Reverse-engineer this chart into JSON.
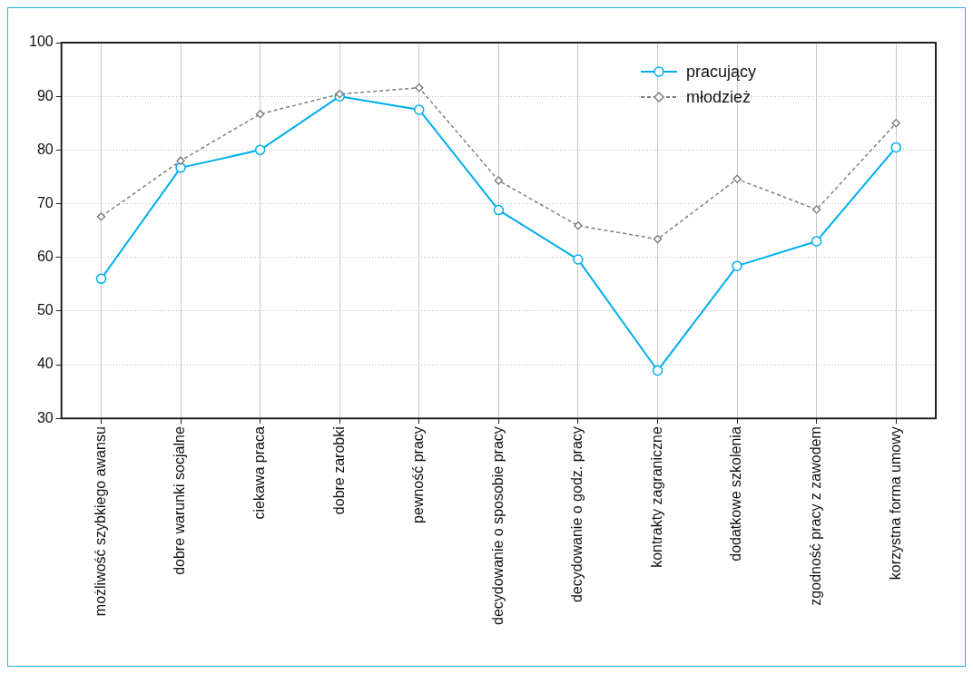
{
  "chart_data": {
    "type": "line",
    "categories": [
      "możliwość szybkiego awansu",
      "dobre warunki socjalne",
      "ciekawa praca",
      "dobre zarobki",
      "pewność pracy",
      "decydowanie o sposobie pracy",
      "decydowanie o godz. pracy",
      "kontrakty zagraniczne",
      "dodatkowe szkolenia",
      "zgodność pracy z zawodem",
      "korzystna forma umowy"
    ],
    "series": [
      {
        "name": "pracujący",
        "color": "#00aeef",
        "marker": "circle",
        "line_style": "solid",
        "values": [
          56.0,
          76.7,
          80.0,
          90.0,
          87.5,
          68.8,
          59.6,
          38.9,
          58.4,
          63.0,
          80.5
        ]
      },
      {
        "name": "młodzież",
        "color": "#808080",
        "marker": "diamond",
        "line_style": "dashed",
        "values": [
          67.6,
          78.0,
          86.7,
          90.4,
          91.6,
          74.3,
          65.9,
          63.4,
          74.6,
          68.9,
          85.0
        ]
      }
    ],
    "ylim": [
      30,
      100
    ],
    "yticks": [
      30,
      40,
      50,
      60,
      70,
      80,
      90,
      100
    ],
    "grid": true,
    "legend": "top right"
  }
}
